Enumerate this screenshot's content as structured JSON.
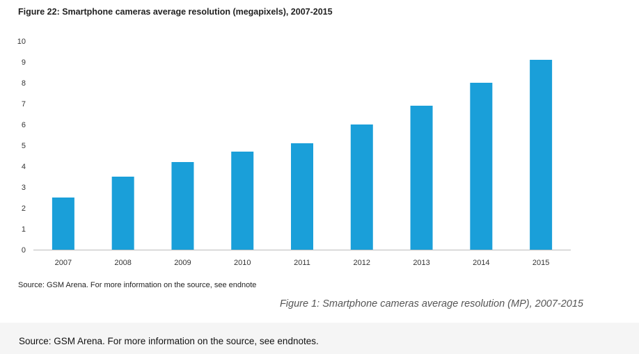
{
  "figure_title": "Figure 22: Smartphone cameras average resolution (megapixels), 2007-2015",
  "source_note": "Source: GSM Arena. For more information on the source, see endnote",
  "caption": "Figure 1: Smartphone cameras average resolution (MP), 2007-2015",
  "footer_note": "Source: GSM Arena. For more information on the source, see endnotes.",
  "colors": {
    "bar": "#1a9fd9",
    "axis": "#bbbbbb"
  },
  "chart_data": {
    "type": "bar",
    "categories": [
      "2007",
      "2008",
      "2009",
      "2010",
      "2011",
      "2012",
      "2013",
      "2014",
      "2015"
    ],
    "values": [
      2.5,
      3.5,
      4.2,
      4.7,
      5.1,
      6.0,
      6.9,
      8.0,
      9.1
    ],
    "yticks": [
      "0",
      "1",
      "2",
      "3",
      "4",
      "5",
      "6",
      "7",
      "8",
      "9",
      "10"
    ],
    "ylim": [
      0,
      10
    ],
    "grid": false,
    "legend": "none"
  }
}
